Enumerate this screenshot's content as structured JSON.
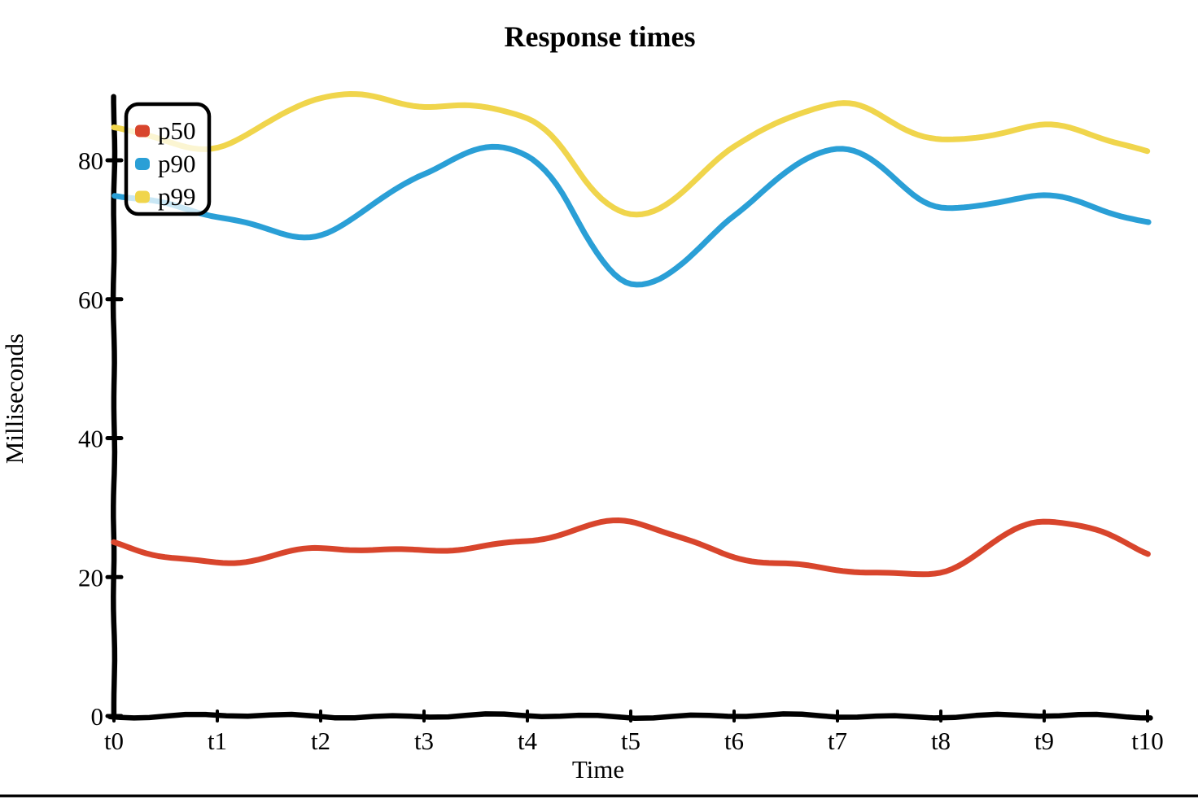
{
  "chart_data": {
    "type": "line",
    "title": "Response times",
    "xlabel": "Time",
    "ylabel": "Milliseconds",
    "categories": [
      "t0",
      "t1",
      "t2",
      "t3",
      "t4",
      "t5",
      "t6",
      "t7",
      "t8",
      "t9",
      "t10"
    ],
    "y_ticks": [
      0,
      20,
      40,
      60,
      80
    ],
    "ylim": [
      0,
      93
    ],
    "grid": false,
    "legend_position": "upper-left",
    "style": "hand-drawn-xkcd",
    "background_color": "#ffffff",
    "axis_color": "#000000",
    "series": [
      {
        "name": "p50",
        "color": "#d8452c",
        "values": [
          25,
          22,
          24,
          24,
          25,
          28,
          23,
          21,
          21,
          28,
          23.5
        ]
      },
      {
        "name": "p90",
        "color": "#2a9fd6",
        "values": [
          75,
          72,
          69.5,
          78,
          81,
          62,
          72,
          82,
          73,
          75,
          71
        ]
      },
      {
        "name": "p99",
        "color": "#f0d54c",
        "values": [
          85,
          82,
          89,
          88,
          86,
          72,
          82,
          88,
          83,
          85,
          81
        ]
      }
    ]
  }
}
